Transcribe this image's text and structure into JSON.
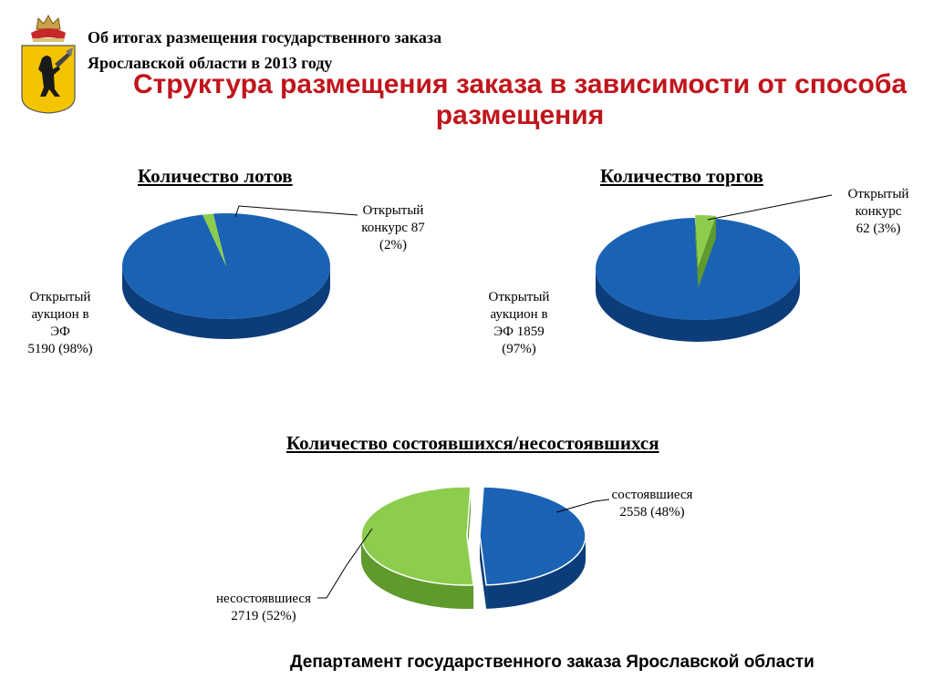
{
  "header": {
    "line1": "Об итогах размещения государственного заказа",
    "line2": "Ярославской области в 2013 году"
  },
  "slide_title": "Структура размещения заказа в зависимости от способа размещения",
  "footer": "Департамент государственного заказа Ярославской области",
  "colors": {
    "title_red": "#c0151c",
    "blue": "#1a63b4",
    "blue_dark": "#0c3d7a",
    "green": "#8ccd4e",
    "green_dark": "#5f9a2c",
    "emblem_gold": "#f5c400"
  },
  "icons": {
    "emblem": "yaroslavl-coat-of-arms-icon"
  },
  "chart_data": [
    {
      "type": "pie",
      "title": "Количество лотов",
      "series": [
        {
          "name": "Открытый аукцион в ЭФ",
          "value": 5190,
          "percent": 98
        },
        {
          "name": "Открытый конкурс",
          "value": 87,
          "percent": 2
        }
      ],
      "labels": {
        "big": [
          "Открытый",
          "аукцион в",
          "ЭФ",
          "5190 (98%)"
        ],
        "small": [
          "Открытый",
          "конкурс 87",
          "(2%)"
        ]
      }
    },
    {
      "type": "pie",
      "title": "Количество торгов",
      "series": [
        {
          "name": "Открытый аукцион в ЭФ",
          "value": 1859,
          "percent": 97
        },
        {
          "name": "Открытый конкурс",
          "value": 62,
          "percent": 3
        }
      ],
      "labels": {
        "big": [
          "Открытый",
          "аукцион в",
          "ЭФ 1859",
          "(97%)"
        ],
        "small": [
          "Открытый",
          "конкурс",
          "62 (3%)"
        ]
      }
    },
    {
      "type": "pie",
      "title": "Количество состоявшихся/несостоявшихся",
      "series": [
        {
          "name": "состоявшиеся",
          "value": 2558,
          "percent": 48
        },
        {
          "name": "несостоявшиеся",
          "value": 2719,
          "percent": 52
        }
      ],
      "labels": {
        "a": [
          "состоявшиеся",
          "2558 (48%)"
        ],
        "b": [
          "несостоявшиеся",
          "2719 (52%)"
        ]
      }
    }
  ]
}
